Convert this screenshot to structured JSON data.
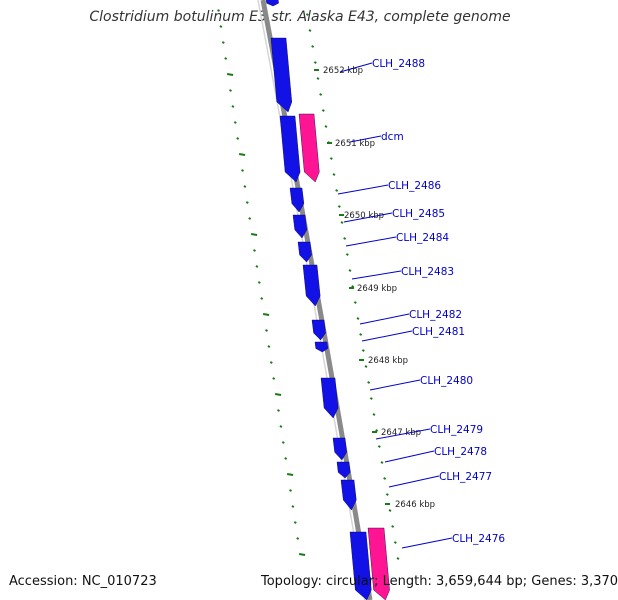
{
  "title": "Clostridium botulinum E3 str. Alaska E43, complete genome",
  "footer": {
    "accession": "Accession: NC_010723",
    "summary": "Topology: circular; Length: 3,659,644 bp; Genes: 3,370"
  },
  "colors": {
    "forward_gene": "#1212e6",
    "rna_gene": "#ff1493",
    "backbone": "#8a8a8a",
    "gc_ticks": "#1a7a1a",
    "label": "#0000cc"
  },
  "scale_labels": [
    "2652 kbp",
    "2651 kbp",
    "2650 kbp",
    "2649 kbp",
    "2648 kbp",
    "2647 kbp",
    "2646 kbp"
  ],
  "gene_labels": [
    "CLH_2488",
    "dcm",
    "CLH_2486",
    "CLH_2485",
    "CLH_2484",
    "CLH_2483",
    "CLH_2482",
    "CLH_2481",
    "CLH_2480",
    "CLH_2479",
    "CLH_2478",
    "CLH_2477",
    "CLH_2476"
  ]
}
